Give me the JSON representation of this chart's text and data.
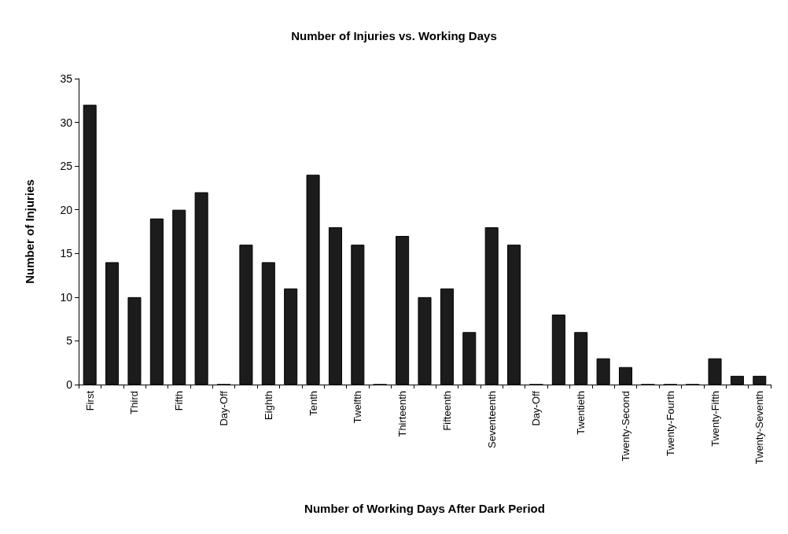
{
  "chart_data": {
    "type": "bar",
    "title": "Number of Injuries vs. Working Days",
    "xlabel": "Number of Working Days After Dark Period",
    "ylabel": "Number of Injuries",
    "categories": [
      "First",
      null,
      "Third",
      null,
      "Fifth",
      null,
      "Day-Off",
      null,
      "Eighth",
      null,
      "Tenth",
      null,
      "Twelfth",
      null,
      "Thirteenth",
      null,
      "Fifteenth",
      null,
      "Seventeenth",
      null,
      "Day-Off",
      null,
      "Twentieth",
      null,
      "Twenty-Second",
      null,
      "Twenty-Fourth",
      null,
      "Twenty-Fifth",
      null,
      "Twenty-Seventh"
    ],
    "values": [
      32,
      14,
      10,
      19,
      20,
      22,
      0,
      16,
      14,
      11,
      24,
      18,
      16,
      0,
      17,
      10,
      11,
      6,
      18,
      16,
      0,
      8,
      6,
      3,
      2,
      0,
      0,
      0,
      3,
      1,
      1
    ],
    "color": "#1c1c1c",
    "ylim": [
      0,
      35
    ],
    "yticks": [
      0,
      5,
      10,
      15,
      20,
      25,
      30,
      35
    ]
  }
}
